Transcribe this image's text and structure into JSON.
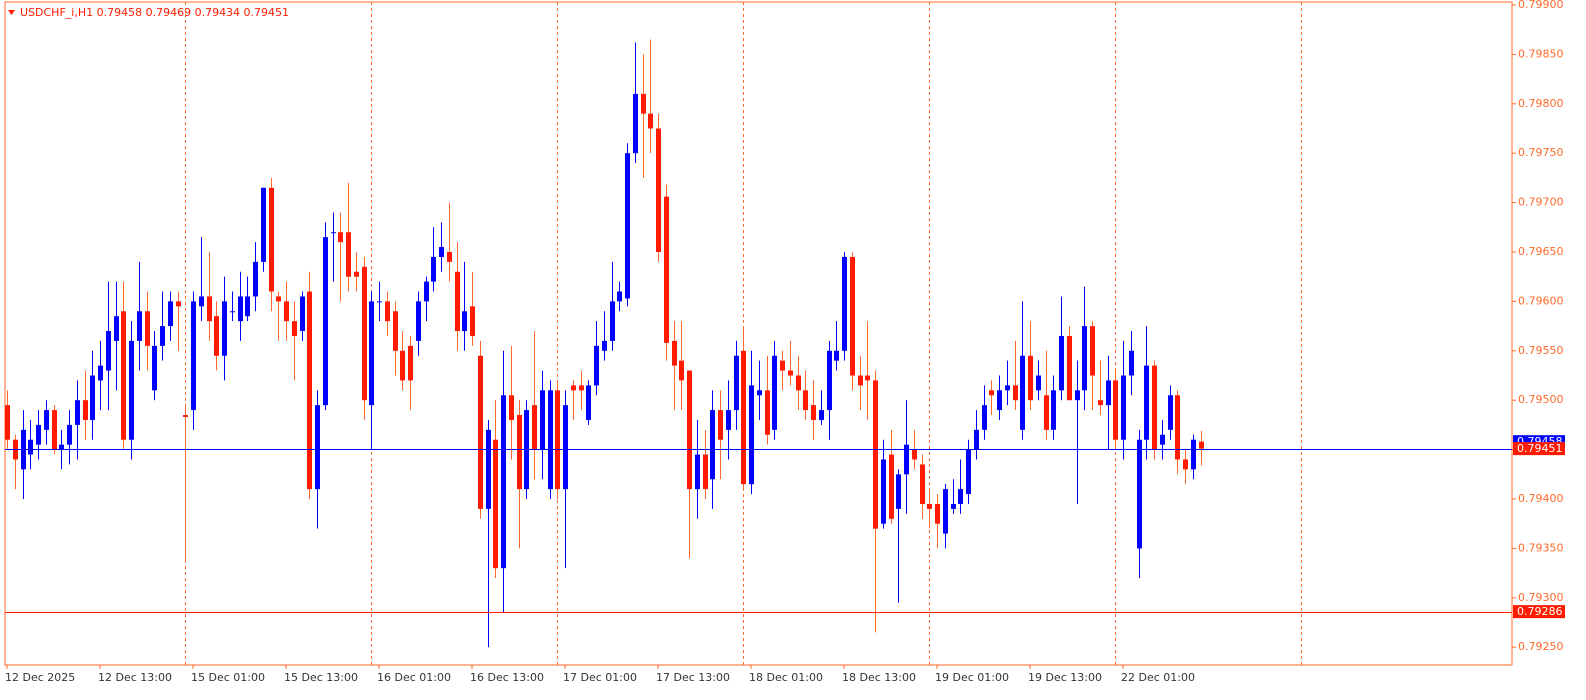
{
  "chart_data": {
    "type": "candlestick",
    "title": "USDCHF_i,H1  0.79458 0.79469 0.79434 0.79451",
    "categories": [
      "12 Dec 2025",
      null,
      null,
      null,
      null,
      null,
      null,
      null,
      null,
      null,
      null,
      null,
      "12 Dec 13:00",
      null,
      null,
      null,
      null,
      null,
      null,
      null,
      null,
      null,
      null,
      null,
      "15 Dec 01:00",
      null,
      null,
      null,
      null,
      null,
      null,
      null,
      null,
      null,
      null,
      null,
      "15 Dec 13:00",
      null,
      null,
      null,
      null,
      null,
      null,
      null,
      null,
      null,
      null,
      null,
      "16 Dec 01:00",
      null,
      null,
      null,
      null,
      null,
      null,
      null,
      null,
      null,
      null,
      null,
      "16 Dec 13:00",
      null,
      null,
      null,
      null,
      null,
      null,
      null,
      null,
      null,
      null,
      null,
      "17 Dec 01:00",
      null,
      null,
      null,
      null,
      null,
      null,
      null,
      null,
      null,
      null,
      null,
      "17 Dec 13:00",
      null,
      null,
      null,
      null,
      null,
      null,
      null,
      null,
      null,
      null,
      null,
      "18 Dec 01:00",
      null,
      null,
      null,
      null,
      null,
      null,
      null,
      null,
      null,
      null,
      null,
      "18 Dec 13:00",
      null,
      null,
      null,
      null,
      null,
      null,
      null,
      null,
      null,
      null,
      null,
      "19 Dec 01:00",
      null,
      null,
      null,
      null,
      null,
      null,
      null,
      null,
      null,
      null,
      null,
      "19 Dec 13:00",
      null,
      null,
      null,
      null,
      null,
      null,
      null,
      null,
      null,
      null,
      null,
      "22 Dec 01:00",
      null,
      null,
      null,
      null,
      null,
      null,
      null,
      null,
      null,
      null
    ],
    "open": [
      0.79495,
      0.7946,
      0.7943,
      0.79445,
      0.79455,
      0.7947,
      0.7949,
      0.7945,
      0.79455,
      0.79475,
      0.795,
      0.7948,
      0.7952,
      0.7953,
      0.7956,
      0.7959,
      0.7946,
      0.7956,
      0.7959,
      0.7951,
      0.79555,
      0.79575,
      0.796,
      0.79485,
      0.7949,
      0.79595,
      0.79605,
      0.79585,
      0.79545,
      0.7959,
      0.7958,
      0.79585,
      0.79605,
      0.7964,
      0.79715,
      0.79605,
      0.796,
      0.7958,
      0.7957,
      0.7961,
      0.7941,
      0.79495,
      0.7967,
      0.7967,
      0.7967,
      0.7963,
      0.79635,
      0.79495,
      0.796,
      0.796,
      0.7959,
      0.7955,
      0.79555,
      0.7956,
      0.796,
      0.7962,
      0.79645,
      0.7965,
      0.7963,
      0.7957,
      0.79595,
      0.79545,
      0.7939,
      0.7946,
      0.7933,
      0.79505,
      0.79485,
      0.7941,
      0.79495,
      0.7945,
      0.7941,
      0.7951,
      0.7941,
      0.79515,
      0.79515,
      0.7948,
      0.79515,
      0.7955,
      0.7956,
      0.796,
      0.79603,
      0.7975,
      0.7981,
      0.7979,
      0.79775,
      0.79706,
      0.7956,
      0.7954,
      0.7953,
      0.7941,
      0.79445,
      0.7942,
      0.7949,
      0.7947,
      0.7949,
      0.7955,
      0.79415,
      0.79505,
      0.7951,
      0.7947,
      0.7954,
      0.7953,
      0.79525,
      0.7951,
      0.79495,
      0.7948,
      0.7949,
      0.7954,
      0.7955,
      0.79645,
      0.79525,
      0.79525,
      0.7952,
      0.79375,
      0.79445,
      0.7939,
      0.79425,
      0.7945,
      0.79435,
      0.79395,
      0.79395,
      0.79365,
      0.7939,
      0.79395,
      0.79405,
      0.7945,
      0.7947,
      0.7951,
      0.7949,
      0.7951,
      0.79515,
      0.7947,
      0.79545,
      0.7951,
      0.79505,
      0.7947,
      0.7951,
      0.79565,
      0.795,
      0.7951,
      0.79575,
      0.795,
      0.79495,
      0.7952,
      0.7946,
      0.79525,
      0.7935,
      0.7946,
      0.79535,
      0.79455,
      0.7947,
      0.79505,
      0.7944,
      0.7943,
      0.79458
    ],
    "high": [
      0.7951,
      0.79465,
      0.7949,
      0.7948,
      0.7949,
      0.795,
      0.79495,
      0.7947,
      0.7949,
      0.7952,
      0.7953,
      0.7955,
      0.7956,
      0.7962,
      0.7962,
      0.7962,
      0.7958,
      0.7964,
      0.7961,
      0.7957,
      0.7961,
      0.7961,
      0.7961,
      0.79495,
      0.7961,
      0.79665,
      0.7965,
      0.796,
      0.79625,
      0.7961,
      0.7963,
      0.79625,
      0.7966,
      0.79715,
      0.79725,
      0.7961,
      0.7962,
      0.796,
      0.7961,
      0.7963,
      0.7951,
      0.7968,
      0.7969,
      0.7969,
      0.7972,
      0.7965,
      0.79645,
      0.7961,
      0.7962,
      0.7961,
      0.796,
      0.7957,
      0.79565,
      0.7961,
      0.79625,
      0.79675,
      0.7968,
      0.797,
      0.7966,
      0.7964,
      0.7963,
      0.7956,
      0.7948,
      0.795,
      0.7955,
      0.79555,
      0.795,
      0.795,
      0.7957,
      0.7953,
      0.7952,
      0.7952,
      0.7951,
      0.7952,
      0.7953,
      0.7952,
      0.7958,
      0.7959,
      0.7964,
      0.7962,
      0.7976,
      0.79862,
      0.7985,
      0.79865,
      0.7979,
      0.79718,
      0.7958,
      0.7958,
      0.7953,
      0.7948,
      0.7947,
      0.7951,
      0.7951,
      0.7952,
      0.7956,
      0.79575,
      0.7955,
      0.7954,
      0.79545,
      0.7956,
      0.7955,
      0.7956,
      0.79545,
      0.7953,
      0.7952,
      0.7951,
      0.7956,
      0.7958,
      0.7965,
      0.7965,
      0.79545,
      0.7958,
      0.7953,
      0.7946,
      0.7947,
      0.7943,
      0.795,
      0.7947,
      0.79445,
      0.7941,
      0.79405,
      0.79415,
      0.7942,
      0.7944,
      0.7946,
      0.7949,
      0.79515,
      0.7952,
      0.79525,
      0.7954,
      0.7956,
      0.796,
      0.7958,
      0.7954,
      0.7955,
      0.79525,
      0.79605,
      0.79575,
      0.7954,
      0.79615,
      0.7958,
      0.7954,
      0.79545,
      0.7953,
      0.7956,
      0.7957,
      0.7947,
      0.79575,
      0.7954,
      0.7948,
      0.79515,
      0.7951,
      0.7945,
      0.79465,
      0.79469
    ],
    "low": [
      0.7945,
      0.7941,
      0.794,
      0.7943,
      0.7944,
      0.79455,
      0.79445,
      0.7943,
      0.79435,
      0.7944,
      0.7946,
      0.7946,
      0.7949,
      0.7949,
      0.7951,
      0.7945,
      0.7944,
      0.7953,
      0.7953,
      0.795,
      0.7954,
      0.7956,
      0.7955,
      0.79338,
      0.7947,
      0.7958,
      0.7956,
      0.7953,
      0.7952,
      0.7958,
      0.7956,
      0.7958,
      0.7959,
      0.7963,
      0.7959,
      0.7956,
      0.7956,
      0.7952,
      0.7956,
      0.794,
      0.7937,
      0.7949,
      0.7962,
      0.796,
      0.7961,
      0.7961,
      0.7948,
      0.7945,
      0.7958,
      0.79565,
      0.79525,
      0.7951,
      0.7949,
      0.79545,
      0.7958,
      0.7961,
      0.7963,
      0.7962,
      0.7955,
      0.7955,
      0.79555,
      0.7938,
      0.7925,
      0.7932,
      0.79285,
      0.7944,
      0.7935,
      0.794,
      0.7942,
      0.7942,
      0.794,
      0.794,
      0.7933,
      0.7948,
      0.7949,
      0.79475,
      0.79505,
      0.7954,
      0.7955,
      0.7959,
      0.79595,
      0.7974,
      0.79725,
      0.7975,
      0.7964,
      0.7954,
      0.7949,
      0.7949,
      0.7934,
      0.7938,
      0.794,
      0.7939,
      0.7942,
      0.7944,
      0.7947,
      0.7941,
      0.79405,
      0.7948,
      0.79455,
      0.7946,
      0.7951,
      0.79515,
      0.7949,
      0.7948,
      0.7946,
      0.79475,
      0.7946,
      0.7953,
      0.7954,
      0.7951,
      0.7949,
      0.7948,
      0.79265,
      0.7937,
      0.79375,
      0.79295,
      0.79385,
      0.7943,
      0.7938,
      0.7937,
      0.7935,
      0.7935,
      0.79385,
      0.79385,
      0.79395,
      0.7944,
      0.7946,
      0.79485,
      0.7948,
      0.79495,
      0.7949,
      0.7946,
      0.7949,
      0.795,
      0.7946,
      0.7946,
      0.795,
      0.795,
      0.79395,
      0.7949,
      0.7949,
      0.79485,
      0.7945,
      0.7945,
      0.7944,
      0.79505,
      0.7932,
      0.7944,
      0.7944,
      0.7944,
      0.7946,
      0.79425,
      0.79415,
      0.7942,
      0.79434
    ],
    "close": [
      0.7946,
      0.7944,
      0.7947,
      0.7946,
      0.79475,
      0.7949,
      0.7945,
      0.79455,
      0.79475,
      0.795,
      0.7948,
      0.79525,
      0.79535,
      0.7957,
      0.79585,
      0.7946,
      0.7956,
      0.7959,
      0.79555,
      0.79555,
      0.79575,
      0.796,
      0.79595,
      0.79483,
      0.796,
      0.79605,
      0.7958,
      0.79545,
      0.796,
      0.7959,
      0.79605,
      0.79605,
      0.7964,
      0.79715,
      0.7961,
      0.796,
      0.7958,
      0.79565,
      0.79605,
      0.7941,
      0.79495,
      0.79665,
      0.7967,
      0.7966,
      0.79625,
      0.79625,
      0.795,
      0.796,
      0.796,
      0.7958,
      0.7955,
      0.7952,
      0.7952,
      0.796,
      0.7962,
      0.79645,
      0.79655,
      0.7964,
      0.7957,
      0.7959,
      0.79565,
      0.7939,
      0.7947,
      0.7933,
      0.79505,
      0.7948,
      0.7941,
      0.7949,
      0.7945,
      0.7951,
      0.7951,
      0.7941,
      0.79495,
      0.7951,
      0.7951,
      0.79515,
      0.79555,
      0.7956,
      0.796,
      0.7961,
      0.7975,
      0.7981,
      0.7979,
      0.79775,
      0.7965,
      0.79558,
      0.79535,
      0.7952,
      0.7941,
      0.79445,
      0.7941,
      0.7949,
      0.7946,
      0.7949,
      0.79545,
      0.79415,
      0.79515,
      0.7951,
      0.79465,
      0.79545,
      0.7953,
      0.79525,
      0.7951,
      0.7949,
      0.7948,
      0.7949,
      0.7955,
      0.7955,
      0.79645,
      0.79525,
      0.79515,
      0.7952,
      0.7937,
      0.7944,
      0.7938,
      0.79425,
      0.79455,
      0.7944,
      0.79395,
      0.7939,
      0.79375,
      0.7941,
      0.79395,
      0.7941,
      0.7945,
      0.7947,
      0.79495,
      0.79505,
      0.7951,
      0.79515,
      0.795,
      0.79545,
      0.795,
      0.79525,
      0.7947,
      0.7951,
      0.79565,
      0.795,
      0.7951,
      0.79575,
      0.79525,
      0.79495,
      0.7952,
      0.7946,
      0.79525,
      0.7955,
      0.7946,
      0.79535,
      0.7945,
      0.79465,
      0.79505,
      0.7944,
      0.7943,
      0.7946,
      0.79451
    ],
    "up_color": "#0000ff",
    "down_color": "#ff1a00",
    "down_wick_color": "#ff6a2a",
    "ylim": [
      0.79232,
      0.79903
    ],
    "yticks": [
      {
        "value": 0.7925,
        "label": "0.79250"
      },
      {
        "value": 0.793,
        "label": "0.79300"
      },
      {
        "value": 0.7935,
        "label": "0.79350"
      },
      {
        "value": 0.794,
        "label": "0.79400"
      },
      {
        "value": 0.7945,
        "label": "0.79450"
      },
      {
        "value": 0.795,
        "label": "0.79500"
      },
      {
        "value": 0.7955,
        "label": "0.79550"
      },
      {
        "value": 0.796,
        "label": "0.79600"
      },
      {
        "value": 0.7965,
        "label": "0.79650"
      },
      {
        "value": 0.797,
        "label": "0.79700"
      },
      {
        "value": 0.7975,
        "label": "0.79750"
      },
      {
        "value": 0.798,
        "label": "0.79800"
      },
      {
        "value": 0.7985,
        "label": "0.79850"
      },
      {
        "value": 0.799,
        "label": "0.79900"
      }
    ],
    "hlines": [
      {
        "value": 0.79451,
        "color": "#0000ff"
      },
      {
        "value": 0.79286,
        "color": "#ff1a00"
      }
    ],
    "price_labels": [
      {
        "value": 0.79458,
        "label": "0.79458",
        "color": "#0000ff"
      },
      {
        "value": 0.79451,
        "label": "0.79451",
        "color": "#ff1a00"
      },
      {
        "value": 0.79286,
        "label": "0.79286",
        "color": "#ff1a00"
      }
    ]
  }
}
